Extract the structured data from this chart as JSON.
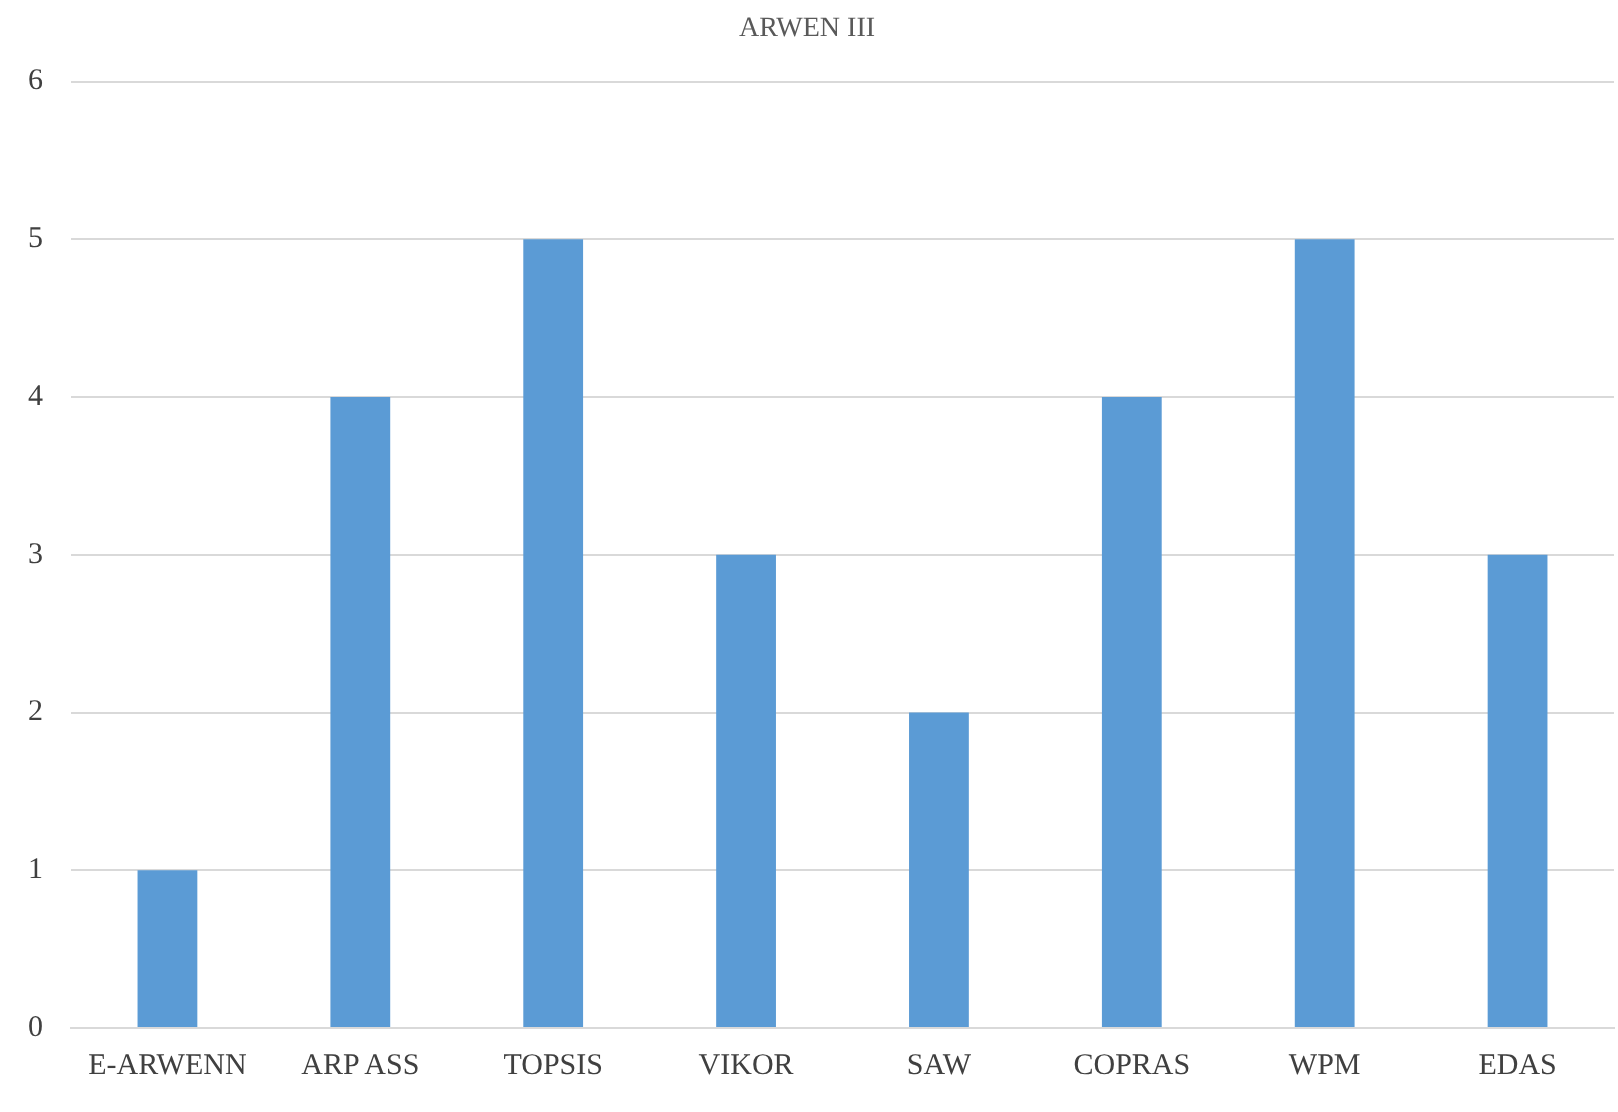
{
  "chart_data": {
    "type": "bar",
    "title": "ARWEN III",
    "categories": [
      "E-ARWENN",
      "ARP ASS",
      "TOPSIS",
      "VIKOR",
      "SAW",
      "COPRAS",
      "WPM",
      "EDAS"
    ],
    "values": [
      1,
      4,
      5,
      3,
      2,
      4,
      5,
      3
    ],
    "color": "#5b9bd5",
    "ylim": [
      0,
      6
    ],
    "yticks": [
      0,
      1,
      2,
      3,
      4,
      5,
      6
    ],
    "grid": "y",
    "legend": false
  }
}
